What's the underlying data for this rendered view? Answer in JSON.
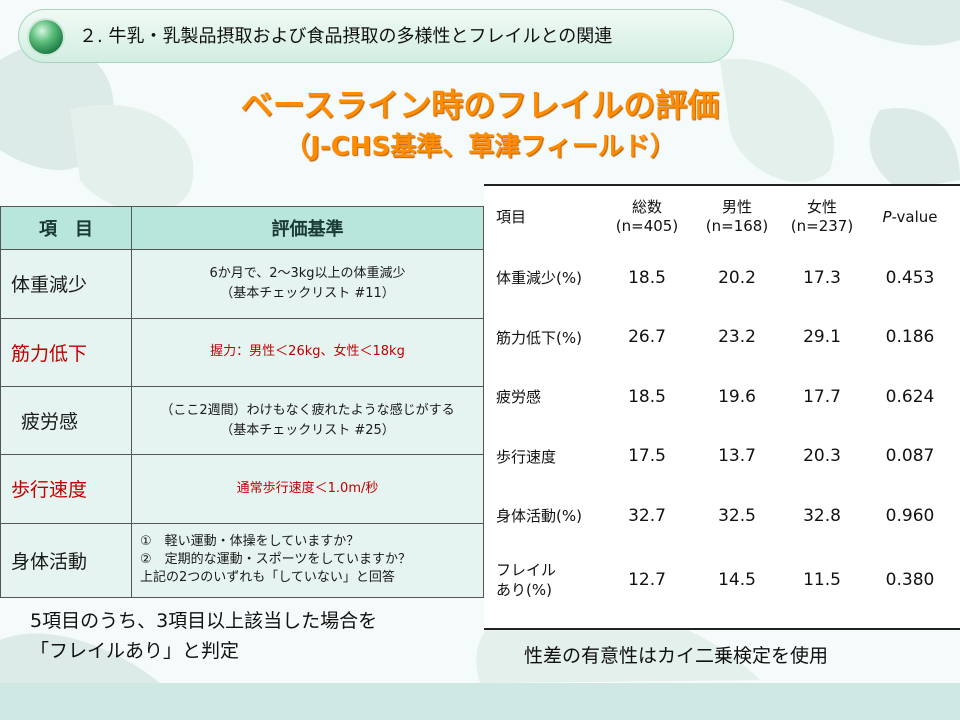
{
  "header": {
    "text": "２. 牛乳・乳製品摂取および食品摂取の多様性とフレイルとの関連"
  },
  "title": {
    "main": "ベースライン時のフレイルの評価",
    "sub": "（J-CHS基準、草津フィールド）"
  },
  "criteria_table": {
    "headers": [
      "項　目",
      "評価基準"
    ],
    "rows": [
      {
        "item": "体重減少",
        "criteria": [
          "6か月で、2～3kg以上の体重減少",
          "（基本チェックリスト #11）"
        ]
      },
      {
        "item": "筋力低下",
        "criteria": [
          "握力：男性＜26kg、女性＜18kg"
        ]
      },
      {
        "item": "疲労感",
        "criteria": [
          "（ここ2週間）わけもなく疲れたような感じがする",
          "（基本チェックリスト #25）"
        ]
      },
      {
        "item": "歩行速度",
        "criteria": [
          "通常歩行速度＜1.0m/秒"
        ]
      },
      {
        "item": "身体活動",
        "criteria": [
          "①　軽い運動・体操をしていますか？",
          "②　定期的な運動・スポーツをしていますか？",
          "上記の2つのいずれも「していない」と回答"
        ]
      }
    ],
    "colors": {
      "header_bg": "#b9e6da",
      "cell_bg": "#e6f4f1",
      "highlight": "#c00000"
    }
  },
  "criteria_note": [
    "5項目のうち、3項目以上該当した場合を",
    "「フレイルあり」と判定"
  ],
  "results_table": {
    "headers": {
      "item": "項目",
      "total": [
        "総数",
        "(n=405)"
      ],
      "male": [
        "男性",
        "(n=168)"
      ],
      "female": [
        "女性",
        "(n=237)"
      ],
      "pvalue_italic": "P",
      "pvalue_rest": "-value"
    },
    "rows": [
      {
        "item": "体重減少(%)",
        "total": "18.5",
        "male": "20.2",
        "female": "17.3",
        "p": "0.453"
      },
      {
        "item": "筋力低下(%)",
        "total": "26.7",
        "male": "23.2",
        "female": "29.1",
        "p": "0.186"
      },
      {
        "item": "疲労感",
        "total": "18.5",
        "male": "19.6",
        "female": "17.7",
        "p": "0.624"
      },
      {
        "item": "歩行速度",
        "total": "17.5",
        "male": "13.7",
        "female": "20.3",
        "p": "0.087"
      },
      {
        "item": "身体活動(%)",
        "total": "32.7",
        "male": "32.5",
        "female": "32.8",
        "p": "0.960"
      },
      {
        "item_lines": [
          "フレイル",
          "あり(%)"
        ],
        "total": "12.7",
        "male": "14.5",
        "female": "11.5",
        "p": "0.380"
      }
    ]
  },
  "results_note": "性差の有意性はカイ二乗検定を使用",
  "colors": {
    "title": "#ff8c00",
    "background": "#f4fbfa"
  }
}
